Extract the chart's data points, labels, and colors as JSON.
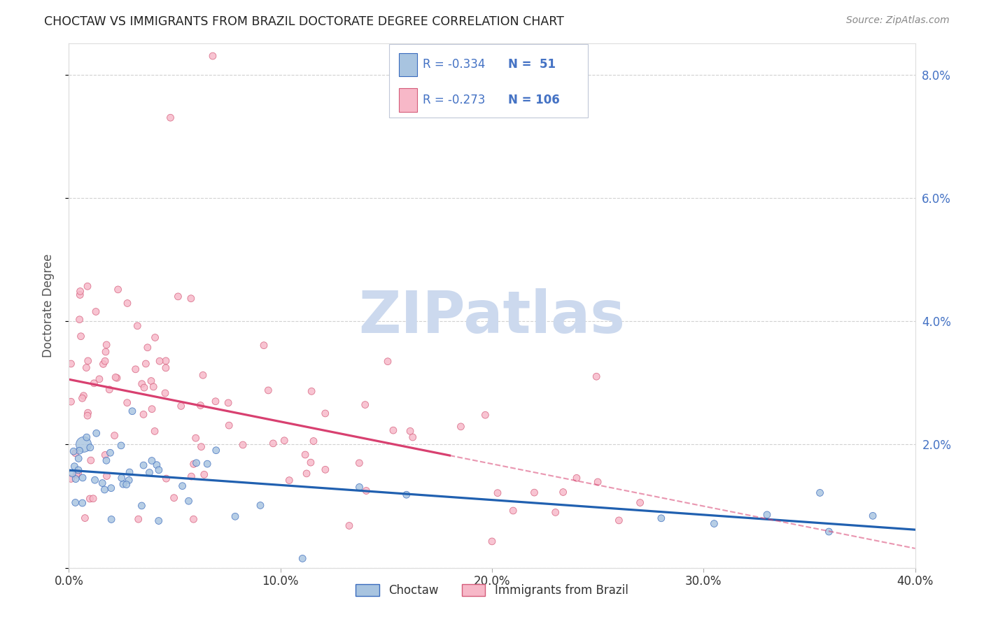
{
  "title": "CHOCTAW VS IMMIGRANTS FROM BRAZIL DOCTORATE DEGREE CORRELATION CHART",
  "source": "Source: ZipAtlas.com",
  "ylabel": "Doctorate Degree",
  "xlim": [
    0.0,
    0.4
  ],
  "ylim": [
    0.0,
    0.085
  ],
  "xticks": [
    0.0,
    0.1,
    0.2,
    0.3,
    0.4
  ],
  "xticklabels": [
    "0.0%",
    "10.0%",
    "20.0%",
    "30.0%",
    "40.0%"
  ],
  "yticks": [
    0.0,
    0.02,
    0.04,
    0.06,
    0.08
  ],
  "right_yticklabels": [
    "",
    "2.0%",
    "4.0%",
    "6.0%",
    "8.0%"
  ],
  "choctaw_fill": "#a8c4e0",
  "choctaw_edge": "#3a6bbd",
  "brazil_fill": "#f7b8c8",
  "brazil_edge": "#d45c7a",
  "choctaw_line_color": "#2060b0",
  "brazil_line_color": "#d84070",
  "R_choctaw": -0.334,
  "N_choctaw": 51,
  "R_brazil": -0.273,
  "N_brazil": 106,
  "watermark_text": "ZIPatlas",
  "watermark_color": "#ccd9ee",
  "grid_color": "#cccccc",
  "background_color": "#ffffff",
  "title_color": "#222222",
  "axis_label_color": "#555555",
  "blue_text": "#4472c4",
  "legend_label_choctaw": "Choctaw",
  "legend_label_brazil": "Immigrants from Brazil"
}
